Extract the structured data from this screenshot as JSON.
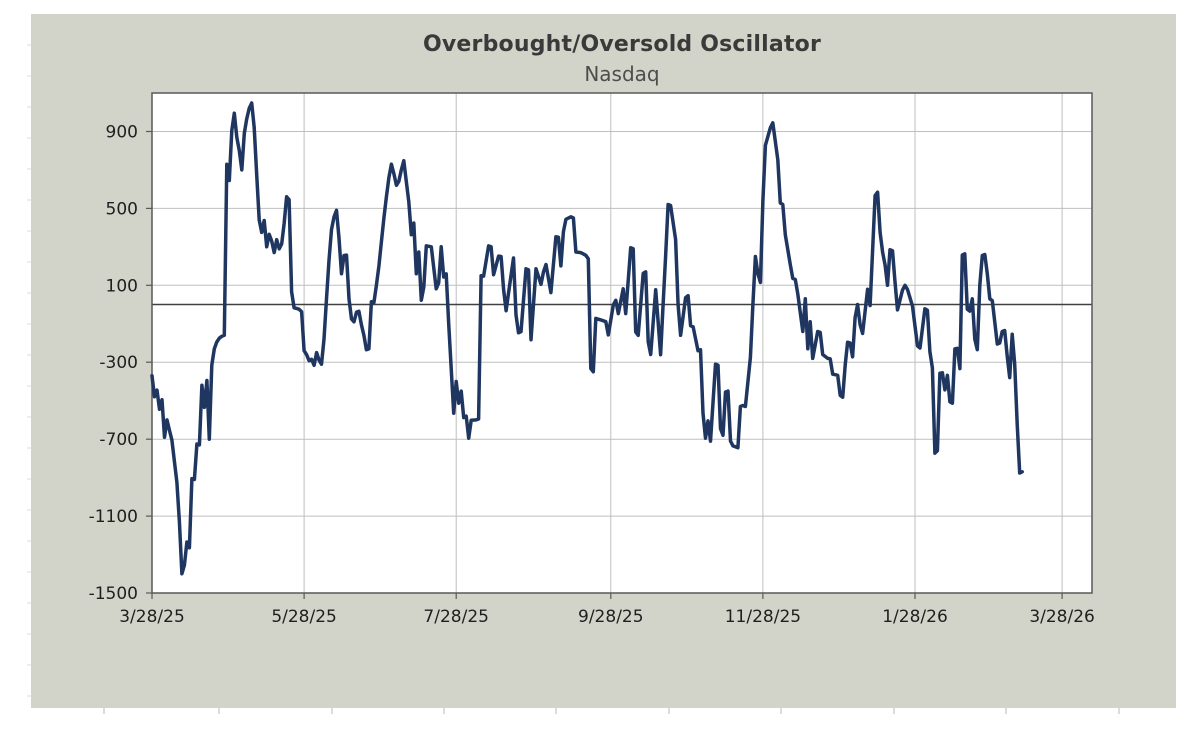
{
  "window": {
    "background_color": "#ffffff",
    "chart_area_color": "#d2d4ca"
  },
  "chart_data": {
    "type": "line",
    "title": "Overbought/Oversold Oscillator",
    "subtitle": "Nasdaq",
    "series_name": "Nasdaq overbought/oversold oscillator",
    "line_color": "#1f3660",
    "colors": {
      "plot_background": "#ffffff",
      "grid": "#bfbfbf",
      "border": "#595959",
      "zero_line": "#404040",
      "tick": "#595959",
      "sheet_mark": "#c6c6be"
    },
    "y_min": -1500,
    "y_max": 1100,
    "y_ticks": [
      900,
      500,
      100,
      -300,
      -700,
      -1100,
      -1500
    ],
    "zero_line_value": 0,
    "x_unit": "days since 3/28/25",
    "x_axis_days": 377,
    "x_labels": [
      {
        "label": "3/28/25",
        "day": 0
      },
      {
        "label": "5/28/25",
        "day": 61
      },
      {
        "label": "7/28/25",
        "day": 122
      },
      {
        "label": "9/28/25",
        "day": 184
      },
      {
        "label": "11/28/25",
        "day": 245
      },
      {
        "label": "1/28/26",
        "day": 306
      },
      {
        "label": "3/28/26",
        "day": 365
      }
    ],
    "grid": "both",
    "legend": "none",
    "points": [
      [
        0,
        -370
      ],
      [
        1,
        -480
      ],
      [
        2,
        -445
      ],
      [
        3,
        -545
      ],
      [
        4,
        -495
      ],
      [
        5,
        -690
      ],
      [
        6,
        -600
      ],
      [
        7,
        -655
      ],
      [
        8,
        -705
      ],
      [
        9,
        -815
      ],
      [
        10,
        -925
      ],
      [
        11,
        -1130
      ],
      [
        12,
        -1400
      ],
      [
        13,
        -1355
      ],
      [
        14,
        -1235
      ],
      [
        15,
        -1265
      ],
      [
        16,
        -905
      ],
      [
        17,
        -910
      ],
      [
        18,
        -725
      ],
      [
        19,
        -730
      ],
      [
        20,
        -420
      ],
      [
        21,
        -535
      ],
      [
        22,
        -395
      ],
      [
        23,
        -700
      ],
      [
        24,
        -315
      ],
      [
        25,
        -230
      ],
      [
        26,
        -195
      ],
      [
        27,
        -175
      ],
      [
        28,
        -165
      ],
      [
        29,
        -160
      ],
      [
        30,
        730
      ],
      [
        31,
        645
      ],
      [
        32,
        905
      ],
      [
        33,
        995
      ],
      [
        34,
        870
      ],
      [
        35,
        800
      ],
      [
        36,
        700
      ],
      [
        37,
        890
      ],
      [
        38,
        965
      ],
      [
        39,
        1020
      ],
      [
        40,
        1048
      ],
      [
        41,
        920
      ],
      [
        42,
        675
      ],
      [
        43,
        440
      ],
      [
        44,
        375
      ],
      [
        45,
        437
      ],
      [
        46,
        300
      ],
      [
        47,
        365
      ],
      [
        48,
        330
      ],
      [
        49,
        270
      ],
      [
        50,
        337
      ],
      [
        51,
        290
      ],
      [
        52,
        316
      ],
      [
        53,
        420
      ],
      [
        54,
        560
      ],
      [
        55,
        545
      ],
      [
        56,
        66
      ],
      [
        57,
        -17
      ],
      [
        58,
        -20
      ],
      [
        59,
        -25
      ],
      [
        60,
        -37
      ],
      [
        61,
        -240
      ],
      [
        62,
        -261
      ],
      [
        63,
        -292
      ],
      [
        64,
        -285
      ],
      [
        65,
        -316
      ],
      [
        66,
        -250
      ],
      [
        67,
        -290
      ],
      [
        68,
        -310
      ],
      [
        69,
        -180
      ],
      [
        70,
        30
      ],
      [
        71,
        230
      ],
      [
        72,
        390
      ],
      [
        73,
        455
      ],
      [
        74,
        490
      ],
      [
        75,
        345
      ],
      [
        76,
        160
      ],
      [
        77,
        255
      ],
      [
        78,
        257
      ],
      [
        79,
        30
      ],
      [
        80,
        -75
      ],
      [
        81,
        -90
      ],
      [
        82,
        -40
      ],
      [
        83,
        -35
      ],
      [
        84,
        -105
      ],
      [
        85,
        -160
      ],
      [
        86,
        -235
      ],
      [
        87,
        -230
      ],
      [
        88,
        15
      ],
      [
        89,
        10
      ],
      [
        90,
        100
      ],
      [
        91,
        200
      ],
      [
        92,
        326
      ],
      [
        93,
        450
      ],
      [
        94,
        560
      ],
      [
        95,
        660
      ],
      [
        96,
        730
      ],
      [
        97,
        680
      ],
      [
        98,
        620
      ],
      [
        99,
        640
      ],
      [
        100,
        700
      ],
      [
        101,
        748
      ],
      [
        102,
        640
      ],
      [
        103,
        534
      ],
      [
        104,
        363
      ],
      [
        105,
        424
      ],
      [
        106,
        160
      ],
      [
        107,
        273
      ],
      [
        108,
        22
      ],
      [
        109,
        91
      ],
      [
        110,
        305
      ],
      [
        112,
        300
      ],
      [
        114,
        82
      ],
      [
        115,
        113
      ],
      [
        116,
        300
      ],
      [
        117,
        143
      ],
      [
        118,
        160
      ],
      [
        119,
        -100
      ],
      [
        121,
        -565
      ],
      [
        122,
        -400
      ],
      [
        123,
        -513
      ],
      [
        124,
        -450
      ],
      [
        125,
        -588
      ],
      [
        126,
        -580
      ],
      [
        127,
        -695
      ],
      [
        128,
        -602
      ],
      [
        130,
        -600
      ],
      [
        131,
        -595
      ],
      [
        132,
        150
      ],
      [
        133,
        148
      ],
      [
        135,
        305
      ],
      [
        136,
        300
      ],
      [
        137,
        155
      ],
      [
        139,
        252
      ],
      [
        140,
        250
      ],
      [
        141,
        78
      ],
      [
        142,
        -32
      ],
      [
        143,
        62
      ],
      [
        145,
        242
      ],
      [
        146,
        -54
      ],
      [
        147,
        -147
      ],
      [
        148,
        -141
      ],
      [
        150,
        186
      ],
      [
        151,
        180
      ],
      [
        152,
        -183
      ],
      [
        154,
        186
      ],
      [
        156,
        105
      ],
      [
        157,
        170
      ],
      [
        158,
        208
      ],
      [
        160,
        62
      ],
      [
        162,
        352
      ],
      [
        163,
        350
      ],
      [
        164,
        201
      ],
      [
        165,
        378
      ],
      [
        166,
        443
      ],
      [
        168,
        456
      ],
      [
        169,
        450
      ],
      [
        170,
        273
      ],
      [
        172,
        270
      ],
      [
        174,
        256
      ],
      [
        175,
        238
      ],
      [
        176,
        -333
      ],
      [
        177,
        -350
      ],
      [
        178,
        -72
      ],
      [
        180,
        -80
      ],
      [
        182,
        -89
      ],
      [
        183,
        -158
      ],
      [
        185,
        -2
      ],
      [
        186,
        22
      ],
      [
        187,
        -47
      ],
      [
        189,
        82
      ],
      [
        190,
        -47
      ],
      [
        192,
        295
      ],
      [
        193,
        290
      ],
      [
        194,
        -143
      ],
      [
        195,
        -160
      ],
      [
        197,
        162
      ],
      [
        198,
        170
      ],
      [
        199,
        -194
      ],
      [
        200,
        -260
      ],
      [
        202,
        77
      ],
      [
        204,
        -261
      ],
      [
        205,
        0
      ],
      [
        206,
        250
      ],
      [
        207,
        520
      ],
      [
        208,
        515
      ],
      [
        210,
        338
      ],
      [
        211,
        -2
      ],
      [
        212,
        -160
      ],
      [
        214,
        36
      ],
      [
        215,
        46
      ],
      [
        216,
        -110
      ],
      [
        217,
        -115
      ],
      [
        219,
        -240
      ],
      [
        220,
        -235
      ],
      [
        221,
        -565
      ],
      [
        222,
        -695
      ],
      [
        223,
        -605
      ],
      [
        224,
        -710
      ],
      [
        226,
        -310
      ],
      [
        227,
        -315
      ],
      [
        228,
        -645
      ],
      [
        229,
        -680
      ],
      [
        230,
        -455
      ],
      [
        231,
        -450
      ],
      [
        232,
        -710
      ],
      [
        233,
        -735
      ],
      [
        235,
        -745
      ],
      [
        236,
        -530
      ],
      [
        237,
        -525
      ],
      [
        238,
        -530
      ],
      [
        240,
        -275
      ],
      [
        241,
        0
      ],
      [
        242,
        250
      ],
      [
        243,
        160
      ],
      [
        244,
        115
      ],
      [
        245,
        540
      ],
      [
        246,
        828
      ],
      [
        248,
        920
      ],
      [
        249,
        945
      ],
      [
        251,
        753
      ],
      [
        252,
        528
      ],
      [
        253,
        520
      ],
      [
        254,
        363
      ],
      [
        256,
        207
      ],
      [
        257,
        136
      ],
      [
        258,
        130
      ],
      [
        259,
        55
      ],
      [
        261,
        -140
      ],
      [
        262,
        30
      ],
      [
        263,
        -230
      ],
      [
        264,
        -90
      ],
      [
        265,
        -280
      ],
      [
        267,
        -140
      ],
      [
        268,
        -145
      ],
      [
        269,
        -260
      ],
      [
        271,
        -280
      ],
      [
        272,
        -282
      ],
      [
        273,
        -362
      ],
      [
        274,
        -365
      ],
      [
        275,
        -368
      ],
      [
        276,
        -472
      ],
      [
        277,
        -482
      ],
      [
        278,
        -315
      ],
      [
        279,
        -196
      ],
      [
        280,
        -200
      ],
      [
        281,
        -272
      ],
      [
        282,
        -68
      ],
      [
        283,
        0
      ],
      [
        284,
        -105
      ],
      [
        285,
        -150
      ],
      [
        287,
        80
      ],
      [
        288,
        -5
      ],
      [
        290,
        567
      ],
      [
        291,
        584
      ],
      [
        292,
        375
      ],
      [
        293,
        272
      ],
      [
        294,
        205
      ],
      [
        295,
        100
      ],
      [
        296,
        285
      ],
      [
        297,
        280
      ],
      [
        298,
        118
      ],
      [
        299,
        -28
      ],
      [
        301,
        75
      ],
      [
        302,
        100
      ],
      [
        303,
        78
      ],
      [
        305,
        -8
      ],
      [
        306,
        -112
      ],
      [
        307,
        -215
      ],
      [
        308,
        -226
      ],
      [
        310,
        -22
      ],
      [
        311,
        -30
      ],
      [
        312,
        -245
      ],
      [
        313,
        -330
      ],
      [
        314,
        -773
      ],
      [
        315,
        -760
      ],
      [
        316,
        -357
      ],
      [
        317,
        -355
      ],
      [
        318,
        -444
      ],
      [
        319,
        -368
      ],
      [
        320,
        -506
      ],
      [
        321,
        -513
      ],
      [
        322,
        -230
      ],
      [
        323,
        -228
      ],
      [
        324,
        -333
      ],
      [
        325,
        257
      ],
      [
        326,
        264
      ],
      [
        327,
        -24
      ],
      [
        328,
        -34
      ],
      [
        329,
        30
      ],
      [
        330,
        -180
      ],
      [
        331,
        -235
      ],
      [
        332,
        100
      ],
      [
        333,
        255
      ],
      [
        334,
        260
      ],
      [
        335,
        160
      ],
      [
        336,
        30
      ],
      [
        337,
        20
      ],
      [
        339,
        -205
      ],
      [
        340,
        -200
      ],
      [
        341,
        -140
      ],
      [
        342,
        -135
      ],
      [
        343,
        -268
      ],
      [
        344,
        -380
      ],
      [
        345,
        -155
      ],
      [
        346,
        -310
      ],
      [
        347,
        -622
      ],
      [
        348,
        -876
      ],
      [
        349,
        -870
      ]
    ]
  }
}
